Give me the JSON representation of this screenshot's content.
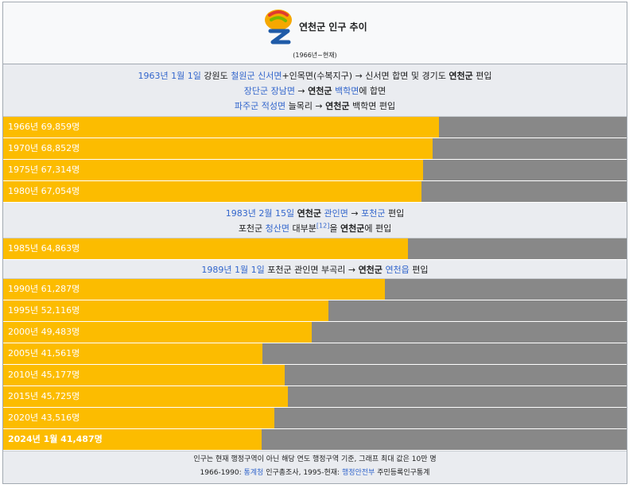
{
  "header": {
    "title": "연천군 인구 추이",
    "subtitle": "(1966년~현재)"
  },
  "notes": {
    "n1": {
      "l1": {
        "date": "1963년 1월 1일",
        "t1": " 강원도 ",
        "link1": "철원군 신서면",
        "t2": "+인목면(수복지구) → 신서면 합면 및 경기도 ",
        "bold": "연천군",
        "t3": " 편입"
      },
      "l2": {
        "link1": "장단군 장남면",
        "t1": " → ",
        "bold": "연천군",
        "t2": " ",
        "link2": "백학면",
        "t3": "에 합면"
      },
      "l3": {
        "link1": "파주군 적성면",
        "t1": " 늘목리 → ",
        "bold": "연천군",
        "t2": " 백학면 편입"
      }
    },
    "n2": {
      "l1": {
        "date": "1983년 2월 15일",
        "t1": " ",
        "bold": "연천군",
        "t2": " ",
        "link1": "관인면",
        "t3": " → ",
        "link2": "포천군",
        "t4": " 편입"
      },
      "l2": {
        "t1": "포천군 ",
        "link1": "청산면",
        "t2": " 대부분",
        "sup": "[12]",
        "t3": "을 ",
        "bold": "연천군",
        "t4": "에 편입"
      }
    },
    "n3": {
      "l1": {
        "date": "1989년 1월 1일",
        "t1": " 포천군 관인면 부곡리 → ",
        "bold": "연천군",
        "t2": " ",
        "link1": "연천읍",
        "t3": " 편입"
      }
    }
  },
  "bars": {
    "max_value": 100000,
    "colors": {
      "fill": "#fcbc00",
      "track": "#888888"
    },
    "g1": [
      {
        "label": "1966년 69,859명",
        "value": 69859
      },
      {
        "label": "1970년 68,852명",
        "value": 68852
      },
      {
        "label": "1975년 67,314명",
        "value": 67314
      },
      {
        "label": "1980년 67,054명",
        "value": 67054
      }
    ],
    "g2": [
      {
        "label": "1985년 64,863명",
        "value": 64863
      }
    ],
    "g3": [
      {
        "label": "1990년 61,287명",
        "value": 61287
      },
      {
        "label": "1995년 52,116명",
        "value": 52116
      },
      {
        "label": "2000년 49,483명",
        "value": 49483
      },
      {
        "label": "2005년 41,561명",
        "value": 41561
      },
      {
        "label": "2010년 45,177명",
        "value": 45177
      },
      {
        "label": "2015년 45,725명",
        "value": 45725
      },
      {
        "label": "2020년 43,516명",
        "value": 43516
      },
      {
        "label": "2024년 1월 41,487명",
        "value": 41487,
        "bold": true
      }
    ]
  },
  "footer": {
    "line1": "인구는 현재 행정구역이 아닌 해당 연도 행정구역 기준, 그래프 최대 값은 10만 명",
    "line2": {
      "t1": "1966-1990: ",
      "link1": "통계청",
      "t2": " 인구총조사, 1995-현재: ",
      "link2": "행정안전부",
      "t3": " 주민등록인구통계"
    }
  }
}
